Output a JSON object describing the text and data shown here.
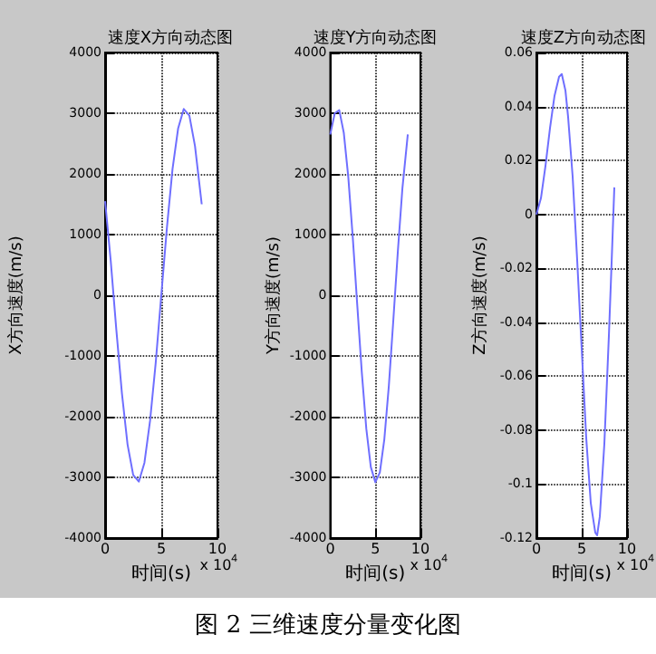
{
  "chart_data": [
    {
      "type": "line",
      "title": "速度X方向动态图",
      "xlabel": "时间(s)",
      "ylabel": "X方向速度(m/s)",
      "annotations": [
        "x 10$^{4}$",
        "图 2 三维速度分量变化图"
      ],
      "x": [
        0,
        0.5,
        1,
        1.5,
        2,
        2.5,
        3,
        3.5,
        4,
        4.5,
        5,
        5.5,
        6,
        6.5,
        7,
        7.5,
        8,
        8.6
      ],
      "series": [
        {
          "color": "#6f6fff",
          "values": [
            1550,
            570,
            -570,
            -1620,
            -2460,
            -2960,
            -3070,
            -2760,
            -2070,
            -1120,
            0,
            1110,
            2080,
            2750,
            3070,
            2960,
            2460,
            1500
          ]
        }
      ],
      "xlim": [
        0,
        10
      ],
      "xticks": [
        0,
        5,
        10
      ],
      "ylim": [
        -4000,
        4000
      ],
      "yticks": [
        -4000,
        -3000,
        -2000,
        -1000,
        0,
        1000,
        2000,
        3000,
        4000
      ],
      "grid": true,
      "line_style": "solid"
    },
    {
      "type": "line",
      "title": "速度Y方向动态图",
      "xlabel": "时间(s)",
      "ylabel": "Y方向速度(m/s)",
      "annotations": [
        "x 10$^{4}$"
      ],
      "x": [
        0,
        0.5,
        1,
        1.5,
        2,
        2.5,
        3,
        3.5,
        4,
        4.5,
        5,
        5.5,
        6,
        6.5,
        7,
        7.5,
        8,
        8.6
      ],
      "series": [
        {
          "color": "#6f6fff",
          "values": [
            2650,
            3000,
            3050,
            2680,
            1950,
            950,
            -170,
            -1270,
            -2200,
            -2830,
            -3080,
            -2920,
            -2370,
            -1490,
            -400,
            730,
            1760,
            2650
          ]
        }
      ],
      "xlim": [
        0,
        10
      ],
      "xticks": [
        0,
        5,
        10
      ],
      "ylim": [
        -4000,
        4000
      ],
      "yticks": [
        -4000,
        -3000,
        -2000,
        -1000,
        0,
        1000,
        2000,
        3000,
        4000
      ],
      "grid": true,
      "line_style": "solid"
    },
    {
      "type": "line",
      "title": "速度Z方向动态图",
      "xlabel": "时间(s)",
      "ylabel": "Z方向速度(m/s)",
      "annotations": [
        "x 10$^{4}$"
      ],
      "x": [
        0,
        0.5,
        1,
        1.5,
        2,
        2.5,
        2.8,
        3.2,
        3.5,
        4,
        4.5,
        5,
        5.5,
        6,
        6.5,
        6.7,
        7,
        7.5,
        8,
        8.3,
        8.6
      ],
      "series": [
        {
          "color": "#6f6fff",
          "values": [
            0,
            0.006,
            0.018,
            0.032,
            0.044,
            0.051,
            0.052,
            0.046,
            0.036,
            0.014,
            -0.017,
            -0.05,
            -0.083,
            -0.107,
            -0.118,
            -0.119,
            -0.112,
            -0.085,
            -0.045,
            -0.018,
            0.01
          ]
        }
      ],
      "xlim": [
        0,
        10
      ],
      "xticks": [
        0,
        5,
        10
      ],
      "ylim": [
        -0.12,
        0.06
      ],
      "yticks": [
        -0.12,
        -0.1,
        -0.08,
        -0.06,
        -0.04,
        -0.02,
        0,
        0.02,
        0.04,
        0.06
      ],
      "grid": true,
      "line_style": "solid"
    }
  ]
}
